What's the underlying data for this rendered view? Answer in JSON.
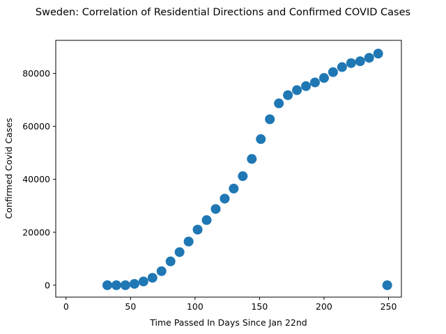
{
  "chart_data": {
    "type": "scatter",
    "title": "Sweden: Correlation of Residential Directions and Confirmed COVID Cases",
    "xlabel": "Time Passed In Days Since Jan 22nd",
    "ylabel": "Confirmed Covid Cases",
    "xlim": [
      -8,
      260
    ],
    "ylim": [
      -4500,
      92500
    ],
    "xticks": [
      0,
      50,
      100,
      150,
      200,
      250
    ],
    "yticks": [
      0,
      20000,
      40000,
      60000,
      80000
    ],
    "grid": false,
    "legend": "none",
    "marker_color": "#1f77b4",
    "points": [
      {
        "x": 32,
        "y": 0
      },
      {
        "x": 39,
        "y": 0
      },
      {
        "x": 46,
        "y": 0
      },
      {
        "x": 53,
        "y": 500
      },
      {
        "x": 60,
        "y": 1400
      },
      {
        "x": 67,
        "y": 2800
      },
      {
        "x": 74,
        "y": 5300
      },
      {
        "x": 81,
        "y": 9000
      },
      {
        "x": 88,
        "y": 12500
      },
      {
        "x": 95,
        "y": 16500
      },
      {
        "x": 102,
        "y": 21000
      },
      {
        "x": 109,
        "y": 24600
      },
      {
        "x": 116,
        "y": 28800
      },
      {
        "x": 123,
        "y": 32700
      },
      {
        "x": 130,
        "y": 36500
      },
      {
        "x": 137,
        "y": 41200
      },
      {
        "x": 144,
        "y": 47700
      },
      {
        "x": 151,
        "y": 55200
      },
      {
        "x": 158,
        "y": 62700
      },
      {
        "x": 165,
        "y": 68700
      },
      {
        "x": 172,
        "y": 71800
      },
      {
        "x": 179,
        "y": 73700
      },
      {
        "x": 186,
        "y": 75200
      },
      {
        "x": 193,
        "y": 76600
      },
      {
        "x": 200,
        "y": 78300
      },
      {
        "x": 207,
        "y": 80500
      },
      {
        "x": 214,
        "y": 82400
      },
      {
        "x": 221,
        "y": 83900
      },
      {
        "x": 228,
        "y": 84600
      },
      {
        "x": 235,
        "y": 85900
      },
      {
        "x": 242,
        "y": 87500
      },
      {
        "x": 249,
        "y": 0
      }
    ]
  }
}
